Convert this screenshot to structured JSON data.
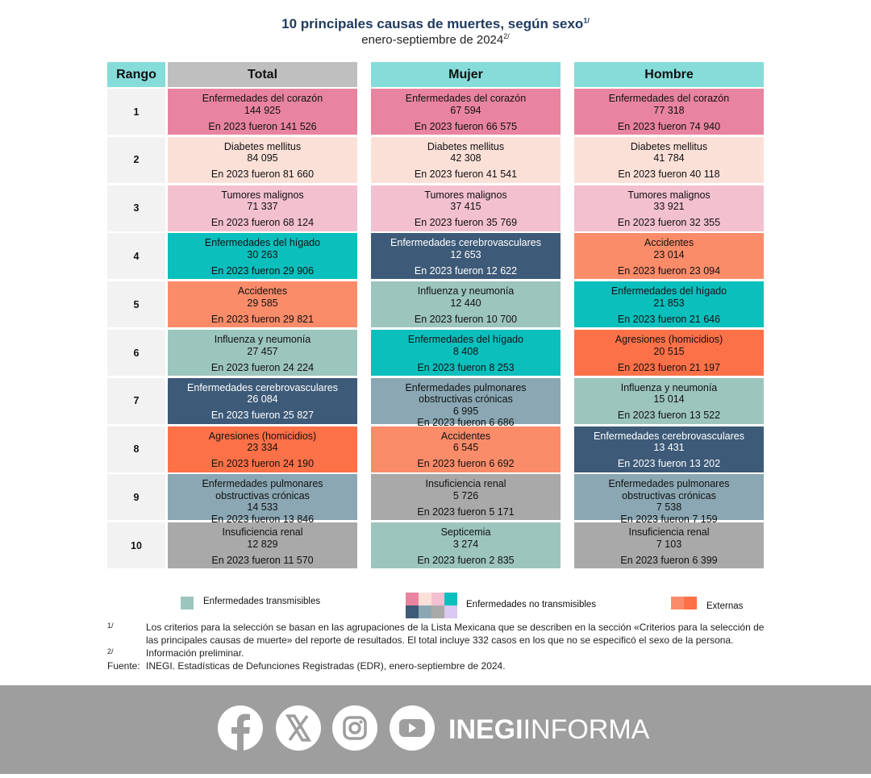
{
  "header": {
    "title": "10 principales causas de muertes, según sexo",
    "title_note": "1/",
    "subtitle": "enero-septiembre de 2024",
    "subtitle_note": "2/"
  },
  "table": {
    "columns": [
      {
        "label": "Rango",
        "color": "#86dcd9"
      },
      {
        "label": "Total",
        "color": "#bfbfbf"
      },
      {
        "label": "Mujer",
        "color": "#86dcd9"
      },
      {
        "label": "Hombre",
        "color": "#86dcd9"
      }
    ],
    "rank_color": "#f2f2f2",
    "rows": [
      {
        "rank": "1",
        "cells": [
          {
            "cause": "Enfermedades del corazón",
            "value": "144 925",
            "previous": "En 2023 fueron 141 526",
            "color": "#e8849f"
          },
          {
            "cause": "Enfermedades del corazón",
            "value": "67 594",
            "previous": "En 2023 fueron 66 575",
            "color": "#e8849f"
          },
          {
            "cause": "Enfermedades del corazón",
            "value": "77 318",
            "previous": "En 2023 fueron 74 940",
            "color": "#e8849f"
          }
        ]
      },
      {
        "rank": "2",
        "cells": [
          {
            "cause": "Diabetes mellitus",
            "value": "84 095",
            "previous": "En 2023 fueron 81 660",
            "color": "#fbe0d8"
          },
          {
            "cause": "Diabetes mellitus",
            "value": "42 308",
            "previous": "En 2023 fueron 41 541",
            "color": "#fbe0d8"
          },
          {
            "cause": "Diabetes mellitus",
            "value": "41 784",
            "previous": "En 2023 fueron 40 118",
            "color": "#fbe0d8"
          }
        ]
      },
      {
        "rank": "3",
        "cells": [
          {
            "cause": "Tumores malignos",
            "value": "71 337",
            "previous": "En 2023 fueron 68 124",
            "color": "#f3c0d0"
          },
          {
            "cause": "Tumores malignos",
            "value": "37 415",
            "previous": "En 2023 fueron 35 769",
            "color": "#f3c0d0"
          },
          {
            "cause": "Tumores malignos",
            "value": "33 921",
            "previous": "En 2023 fueron 32 355",
            "color": "#f3c0d0"
          }
        ]
      },
      {
        "rank": "4",
        "cells": [
          {
            "cause": "Enfermedades del hígado",
            "value": "30 263",
            "previous": "En 2023 fueron 29 906",
            "color": "#0bbfbd"
          },
          {
            "cause": "Enfermedades cerebrovasculares",
            "value": "12 653",
            "previous": "En 2023 fueron 12 622",
            "color": "#3d5a78"
          },
          {
            "cause": "Accidentes",
            "value": "23 014",
            "previous": "En 2023 fueron 23 094",
            "color": "#fb8c6a"
          }
        ]
      },
      {
        "rank": "5",
        "cells": [
          {
            "cause": "Accidentes",
            "value": "29 585",
            "previous": "En 2023 fueron 29 821",
            "color": "#fb8c6a"
          },
          {
            "cause": "Influenza y neumonía",
            "value": "12 440",
            "previous": "En 2023 fueron 10 700",
            "color": "#9cc5bd"
          },
          {
            "cause": "Enfermedades del hígado",
            "value": "21 853",
            "previous": "En 2023 fueron 21 646",
            "color": "#0bbfbd"
          }
        ]
      },
      {
        "rank": "6",
        "cells": [
          {
            "cause": "Influenza y neumonía",
            "value": "27 457",
            "previous": "En 2023 fueron 24 224",
            "color": "#9cc5bd"
          },
          {
            "cause": "Enfermedades del hígado",
            "value": "8 408",
            "previous": "En 2023 fueron 8 253",
            "color": "#0bbfbd"
          },
          {
            "cause": "Agresiones (homicidios)",
            "value": "20 515",
            "previous": "En 2023 fueron 21 197",
            "color": "#fd7148"
          }
        ]
      },
      {
        "rank": "7",
        "cells": [
          {
            "cause": "Enfermedades cerebrovasculares",
            "value": "26 084",
            "previous": "En 2023 fueron 25 827",
            "color": "#3d5a78"
          },
          {
            "cause": "Enfermedades pulmonares obstructivas crónicas",
            "value": "6 995",
            "previous": "En 2023 fueron 6 686",
            "color": "#8aa7b3"
          },
          {
            "cause": "Influenza y neumonía",
            "value": "15 014",
            "previous": "En 2023 fueron 13 522",
            "color": "#9cc5bd"
          }
        ]
      },
      {
        "rank": "8",
        "cells": [
          {
            "cause": "Agresiones (homicidios)",
            "value": "23 334",
            "previous": "En 2023 fueron 24 190",
            "color": "#fd7148"
          },
          {
            "cause": "Accidentes",
            "value": "6 545",
            "previous": "En 2023 fueron 6 692",
            "color": "#fb8c6a"
          },
          {
            "cause": "Enfermedades cerebrovasculares",
            "value": "13 431",
            "previous": "En 2023 fueron 13 202",
            "color": "#3d5a78"
          }
        ]
      },
      {
        "rank": "9",
        "cells": [
          {
            "cause": "Enfermedades pulmonares obstructivas crónicas",
            "value": "14 533",
            "previous": "En 2023 fueron 13 846",
            "color": "#8aa7b3"
          },
          {
            "cause": "Insuficiencia renal",
            "value": "5 726",
            "previous": "En 2023 fueron 5 171",
            "color": "#a9a9a9"
          },
          {
            "cause": "Enfermedades pulmonares obstructivas crónicas",
            "value": "7 538",
            "previous": "En 2023 fueron 7 159",
            "color": "#8aa7b3"
          }
        ]
      },
      {
        "rank": "10",
        "cells": [
          {
            "cause": "Insuficiencia renal",
            "value": "12 829",
            "previous": "En 2023 fueron 11 570",
            "color": "#a9a9a9"
          },
          {
            "cause": "Septicemia",
            "value": "3 274",
            "previous": "En 2023 fueron 2 835",
            "color": "#9cc5bd"
          },
          {
            "cause": "Insuficiencia renal",
            "value": "7 103",
            "previous": "En 2023 fueron 6 399",
            "color": "#a9a9a9"
          }
        ]
      }
    ]
  },
  "legend": [
    {
      "label": "Enfermedades transmisibles",
      "colors": [
        "#9cc5bd"
      ]
    },
    {
      "label": "Enfermedades no transmisibles",
      "colors": [
        "#e8849f",
        "#fbe0d8",
        "#f3c0d0",
        "#0bbfbd",
        "#3d5a78",
        "#8aa7b3",
        "#a9a9a9",
        "#d9c8f0"
      ]
    },
    {
      "label": "Externas",
      "colors": [
        "#fb8c6a",
        "#fd7148"
      ]
    }
  ],
  "notes": [
    {
      "marker": "1/",
      "text": "Los criterios para la selección se basan en las agrupaciones de la Lista Mexicana que se describen en la sección «Criterios para la selección de las principales causas de muerte» del reporte de resultados. El total incluye 332 casos en los que no se especificó el sexo de la persona."
    },
    {
      "marker": "2/",
      "text": "Información preliminar."
    }
  ],
  "source": {
    "label": "Fuente:",
    "text": "INEGI. Estadísticas de Defunciones Registradas (EDR), enero-septiembre de 2024."
  },
  "footer": {
    "brand_bold": "INEGI",
    "brand_light": "INFORMA"
  }
}
